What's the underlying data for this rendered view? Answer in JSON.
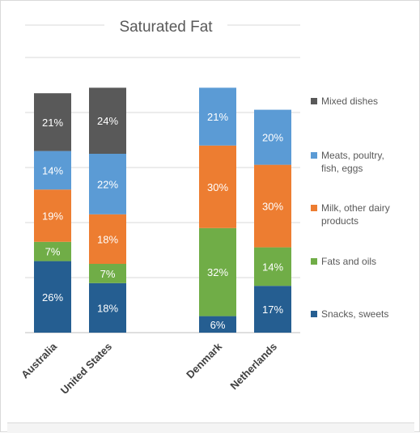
{
  "chart_data": {
    "type": "bar",
    "stacked": true,
    "title": "Saturated Fat",
    "categories": [
      "Australia",
      "United States",
      "Denmark",
      "Netherlands"
    ],
    "ylim": [
      0,
      100
    ],
    "grid": true,
    "legend_position": "right",
    "series": [
      {
        "name": "Snacks,  sweets",
        "color": "#255e91",
        "values": [
          26,
          18,
          6,
          17
        ],
        "labels": [
          "26%",
          "18%",
          "6%",
          "17%"
        ]
      },
      {
        "name": "Fats and oils",
        "color": "#70ad47",
        "values": [
          7,
          7,
          32,
          14
        ],
        "labels": [
          "7%",
          "7%",
          "32%",
          "14%"
        ]
      },
      {
        "name": "Milk, other dairy products",
        "color": "#ed7d31",
        "values": [
          19,
          18,
          30,
          30
        ],
        "labels": [
          "19%",
          "18%",
          "30%",
          "30%"
        ]
      },
      {
        "name": "Meats, poultry, fish, eggs",
        "color": "#5b9bd5",
        "values": [
          14,
          22,
          21,
          20
        ],
        "labels": [
          "14%",
          "22%",
          "21%",
          "20%"
        ]
      },
      {
        "name": "Mixed dishes",
        "color": "#595959",
        "values": [
          21,
          24,
          0,
          0
        ],
        "labels": [
          "21%",
          "24%",
          "",
          ""
        ]
      }
    ],
    "legend_order": [
      "Mixed dishes",
      "Meats, poultry, fish, eggs",
      "Milk, other dairy products",
      "Fats and oils",
      "Snacks,  sweets"
    ]
  }
}
